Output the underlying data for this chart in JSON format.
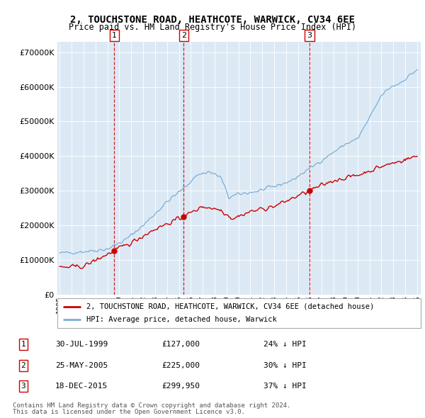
{
  "title": "2, TOUCHSTONE ROAD, HEATHCOTE, WARWICK, CV34 6EE",
  "subtitle": "Price paid vs. HM Land Registry's House Price Index (HPI)",
  "legend_line1": "2, TOUCHSTONE ROAD, HEATHCOTE, WARWICK, CV34 6EE (detached house)",
  "legend_line2": "HPI: Average price, detached house, Warwick",
  "sales": [
    {
      "num": 1,
      "date": "30-JUL-1999",
      "year": 1999.58,
      "price": 127000,
      "label": "24% ↓ HPI"
    },
    {
      "num": 2,
      "date": "25-MAY-2005",
      "year": 2005.4,
      "price": 225000,
      "label": "30% ↓ HPI"
    },
    {
      "num": 3,
      "date": "18-DEC-2015",
      "year": 2015.96,
      "price": 299950,
      "label": "37% ↓ HPI"
    }
  ],
  "hpi_color": "#7bafd4",
  "price_color": "#cc0000",
  "background_color": "#dce9f5",
  "grid_color": "#ffffff",
  "footnote1": "Contains HM Land Registry data © Crown copyright and database right 2024.",
  "footnote2": "This data is licensed under the Open Government Licence v3.0.",
  "yticks": [
    0,
    100000,
    200000,
    300000,
    400000,
    500000,
    600000,
    700000
  ],
  "ylim": [
    0,
    730000
  ],
  "xlim": [
    1994.8,
    2025.3
  ]
}
